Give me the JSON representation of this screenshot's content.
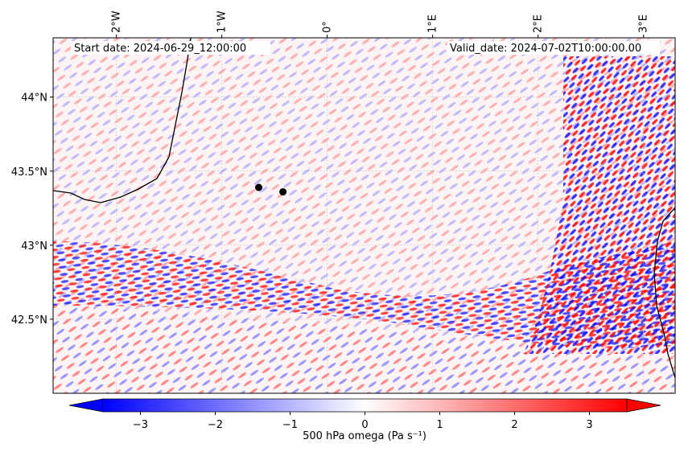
{
  "header": {
    "start_date": "Start date: 2024-06-29_12:00:00",
    "valid_date": "Valid_date: 2024-07-02T10:00:00.00"
  },
  "map": {
    "lon_range": [
      -2.6,
      3.3
    ],
    "lat_range": [
      42.0,
      44.4
    ],
    "lon_ticks": [
      {
        "value": -2,
        "label": "2°W"
      },
      {
        "value": -1,
        "label": "1°W"
      },
      {
        "value": 0,
        "label": "0°"
      },
      {
        "value": 1,
        "label": "1°E"
      },
      {
        "value": 2,
        "label": "2°E"
      },
      {
        "value": 3,
        "label": "3°E"
      }
    ],
    "lat_ticks": [
      {
        "value": 44.0,
        "label": "44°N"
      },
      {
        "value": 43.5,
        "label": "43.5°N"
      },
      {
        "value": 43.0,
        "label": "43°N"
      },
      {
        "value": 42.5,
        "label": "42.5°N"
      }
    ],
    "markers": [
      {
        "lon": -0.65,
        "lat": 43.39
      },
      {
        "lon": -0.42,
        "lat": 43.36
      }
    ],
    "colors": {
      "negative": "#0000ff",
      "zero": "#ffffff",
      "positive": "#ff0000"
    }
  },
  "colorbar": {
    "label": "500 hPa omega (Pa s⁻¹)",
    "range": [
      -3.5,
      3.5
    ],
    "ticks": [
      {
        "value": -3,
        "label": "−3"
      },
      {
        "value": -2,
        "label": "−2"
      },
      {
        "value": -1,
        "label": "−1"
      },
      {
        "value": 0,
        "label": "0"
      },
      {
        "value": 1,
        "label": "1"
      },
      {
        "value": 2,
        "label": "2"
      },
      {
        "value": 3,
        "label": "3"
      }
    ],
    "extend": "both"
  }
}
